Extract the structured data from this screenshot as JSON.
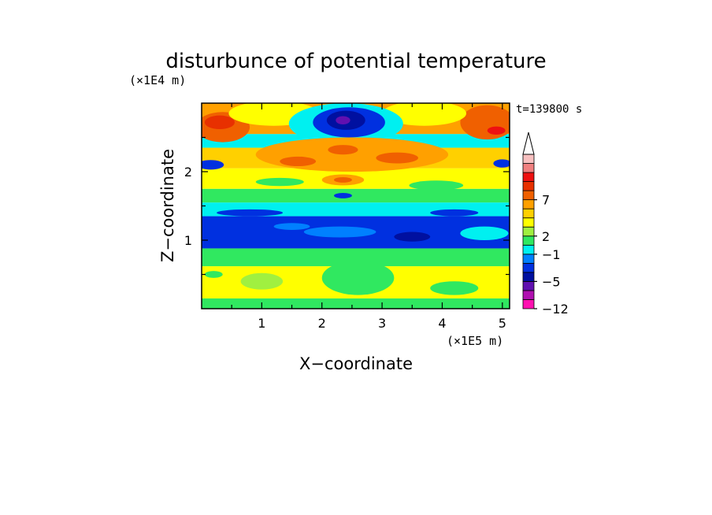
{
  "chart_data": {
    "type": "heatmap",
    "title": "disturbunce of potential temperature",
    "xlabel": "X−coordinate",
    "ylabel": "Z−coordinate",
    "x_unit": "(×1E5 m)",
    "y_unit": "(×1E4 m)",
    "time_label": "t=139800 s",
    "xlim": [
      0,
      5.12
    ],
    "ylim": [
      0,
      3.0
    ],
    "x_ticks": [
      {
        "value": 1,
        "label": "1"
      },
      {
        "value": 2,
        "label": "2"
      },
      {
        "value": 3,
        "label": "3"
      },
      {
        "value": 4,
        "label": "4"
      },
      {
        "value": 5,
        "label": "5"
      }
    ],
    "y_ticks": [
      {
        "value": 1,
        "label": "1"
      },
      {
        "value": 2,
        "label": "2"
      }
    ],
    "colorbar": {
      "labels": [
        "7",
        "2",
        "−1",
        "−5",
        "−12"
      ],
      "colors": [
        "#ff10b0",
        "#b010b0",
        "#6010b0",
        "#0010a0",
        "#0030e0",
        "#0080ff",
        "#00f0f0",
        "#30e860",
        "#a0f040",
        "#ffff00",
        "#ffd000",
        "#ffa000",
        "#f06000",
        "#e83000",
        "#ee1010",
        "#f08080",
        "#f8c0c0"
      ]
    },
    "bands": [
      {
        "z": [
          0.0,
          0.15
        ],
        "color": "#30e860"
      },
      {
        "z": [
          0.15,
          0.62
        ],
        "color": "#ffff00"
      },
      {
        "z": [
          0.62,
          0.88
        ],
        "color": "#30e860"
      },
      {
        "z": [
          0.88,
          1.35
        ],
        "color": "#0030e0"
      },
      {
        "z": [
          1.35,
          1.55
        ],
        "color": "#00f0f0"
      },
      {
        "z": [
          1.55,
          1.75
        ],
        "color": "#30e860"
      },
      {
        "z": [
          1.75,
          2.05
        ],
        "color": "#ffff00"
      },
      {
        "z": [
          2.05,
          2.35
        ],
        "color": "#ffd000"
      },
      {
        "z": [
          2.35,
          2.55
        ],
        "color": "#00f0f0"
      },
      {
        "z": [
          2.55,
          3.0
        ],
        "color": "#ffa000"
      }
    ],
    "features": [
      {
        "x": 0.35,
        "z": 2.65,
        "rx": 0.45,
        "rz": 0.22,
        "color": "#f06000"
      },
      {
        "x": 0.3,
        "z": 2.72,
        "rx": 0.25,
        "rz": 0.1,
        "color": "#e83000"
      },
      {
        "x": 4.75,
        "z": 2.72,
        "rx": 0.45,
        "rz": 0.25,
        "color": "#f06000"
      },
      {
        "x": 4.9,
        "z": 2.6,
        "rx": 0.15,
        "rz": 0.06,
        "color": "#ee1010"
      },
      {
        "x": 1.2,
        "z": 2.85,
        "rx": 0.75,
        "rz": 0.18,
        "color": "#ffff00"
      },
      {
        "x": 3.7,
        "z": 2.85,
        "rx": 0.7,
        "rz": 0.18,
        "color": "#ffff00"
      },
      {
        "x": 2.4,
        "z": 2.7,
        "rx": 0.95,
        "rz": 0.3,
        "color": "#00f0f0"
      },
      {
        "x": 2.45,
        "z": 2.72,
        "rx": 0.6,
        "rz": 0.22,
        "color": "#0030e0"
      },
      {
        "x": 2.4,
        "z": 2.75,
        "rx": 0.32,
        "rz": 0.14,
        "color": "#0010a0"
      },
      {
        "x": 2.35,
        "z": 2.75,
        "rx": 0.12,
        "rz": 0.06,
        "color": "#6010b0"
      },
      {
        "x": 0.15,
        "z": 2.1,
        "rx": 0.22,
        "rz": 0.07,
        "color": "#0030e0"
      },
      {
        "x": 5.0,
        "z": 2.12,
        "rx": 0.15,
        "rz": 0.06,
        "color": "#0030e0"
      },
      {
        "x": 2.5,
        "z": 2.25,
        "rx": 1.6,
        "rz": 0.25,
        "color": "#ffa000"
      },
      {
        "x": 1.6,
        "z": 2.15,
        "rx": 0.3,
        "rz": 0.07,
        "color": "#f06000"
      },
      {
        "x": 3.25,
        "z": 2.2,
        "rx": 0.35,
        "rz": 0.08,
        "color": "#f06000"
      },
      {
        "x": 2.35,
        "z": 2.32,
        "rx": 0.25,
        "rz": 0.07,
        "color": "#f06000"
      },
      {
        "x": 2.35,
        "z": 1.88,
        "rx": 0.35,
        "rz": 0.08,
        "color": "#ffa000"
      },
      {
        "x": 2.35,
        "z": 1.88,
        "rx": 0.15,
        "rz": 0.04,
        "color": "#f06000"
      },
      {
        "x": 2.35,
        "z": 1.65,
        "rx": 0.15,
        "rz": 0.04,
        "color": "#0030e0"
      },
      {
        "x": 1.3,
        "z": 1.85,
        "rx": 0.4,
        "rz": 0.06,
        "color": "#30e860"
      },
      {
        "x": 3.9,
        "z": 1.8,
        "rx": 0.45,
        "rz": 0.07,
        "color": "#30e860"
      },
      {
        "x": 0.8,
        "z": 1.4,
        "rx": 0.55,
        "rz": 0.05,
        "color": "#0030e0"
      },
      {
        "x": 4.2,
        "z": 1.4,
        "rx": 0.4,
        "rz": 0.05,
        "color": "#0030e0"
      },
      {
        "x": 2.3,
        "z": 1.12,
        "rx": 0.6,
        "rz": 0.08,
        "color": "#0080ff"
      },
      {
        "x": 4.7,
        "z": 1.1,
        "rx": 0.4,
        "rz": 0.1,
        "color": "#00f0f0"
      },
      {
        "x": 3.5,
        "z": 1.05,
        "rx": 0.3,
        "rz": 0.07,
        "color": "#0010a0"
      },
      {
        "x": 1.5,
        "z": 1.2,
        "rx": 0.3,
        "rz": 0.05,
        "color": "#0080ff"
      },
      {
        "x": 2.6,
        "z": 0.45,
        "rx": 0.6,
        "rz": 0.25,
        "color": "#30e860"
      },
      {
        "x": 1.0,
        "z": 0.4,
        "rx": 0.35,
        "rz": 0.12,
        "color": "#a0f040"
      },
      {
        "x": 4.2,
        "z": 0.3,
        "rx": 0.4,
        "rz": 0.1,
        "color": "#30e860"
      },
      {
        "x": 0.2,
        "z": 0.5,
        "rx": 0.15,
        "rz": 0.05,
        "color": "#30e860"
      }
    ]
  }
}
